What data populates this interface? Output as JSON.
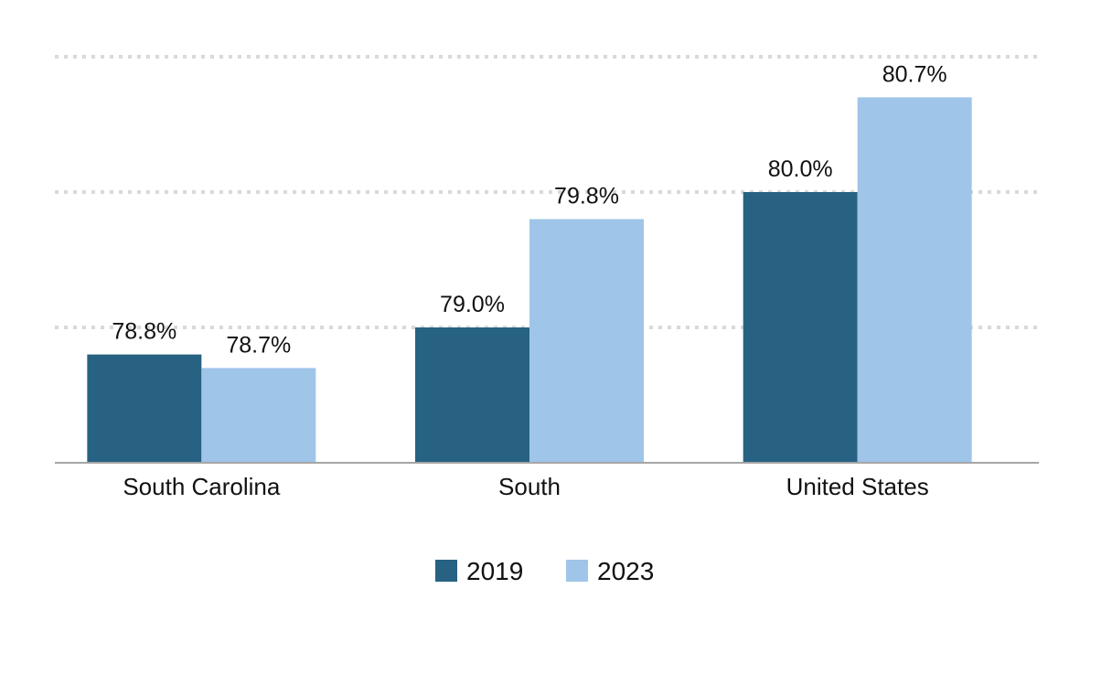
{
  "chart_data": {
    "type": "bar",
    "categories": [
      "South Carolina",
      "South",
      "United States"
    ],
    "series": [
      {
        "name": "2019",
        "values": [
          78.8,
          79.0,
          80.0
        ],
        "labels": [
          "78.8%",
          "79.0%",
          "80.0%"
        ],
        "color": "#276283"
      },
      {
        "name": "2023",
        "values": [
          78.7,
          79.8,
          80.7
        ],
        "labels": [
          "78.7%",
          "79.8%",
          "80.7%"
        ],
        "color": "#9fc5e8"
      }
    ],
    "ylim": [
      78.0,
      81.0
    ],
    "gridlines": [
      79.0,
      80.0,
      81.0
    ],
    "grid": true,
    "legend_position": "bottom-center",
    "title": "",
    "xlabel": "",
    "ylabel": ""
  }
}
